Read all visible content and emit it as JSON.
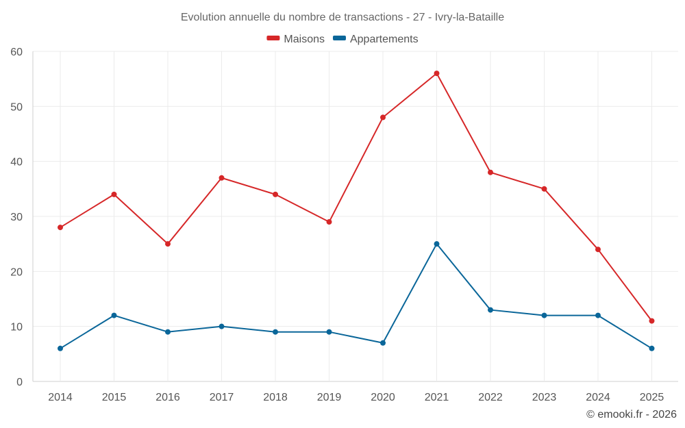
{
  "chart_data": {
    "type": "line",
    "title": "Evolution annuelle du nombre de transactions - 27 - Ivry-la-Bataille",
    "categories": [
      "2014",
      "2015",
      "2016",
      "2017",
      "2018",
      "2019",
      "2020",
      "2021",
      "2022",
      "2023",
      "2024",
      "2025"
    ],
    "series": [
      {
        "name": "Maisons",
        "color": "#d62728",
        "values": [
          28,
          34,
          25,
          37,
          34,
          29,
          48,
          56,
          38,
          35,
          24,
          11
        ]
      },
      {
        "name": "Appartements",
        "color": "#0a6699",
        "values": [
          6,
          12,
          9,
          10,
          9,
          9,
          7,
          25,
          13,
          12,
          12,
          6
        ]
      }
    ],
    "ylim": [
      0,
      60
    ],
    "yticks": [
      0,
      10,
      20,
      30,
      40,
      50,
      60
    ],
    "xlabel": "",
    "ylabel": "",
    "grid": true,
    "legend": "top-center"
  },
  "credit": "© emooki.fr - 2026"
}
